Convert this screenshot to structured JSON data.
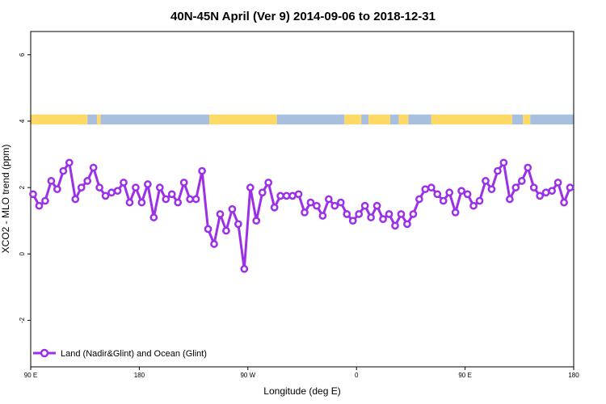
{
  "chart_data": {
    "type": "line",
    "title": "40N-45N April (Ver 9)   2014-09-06 to 2018-12-31",
    "xlabel": "Longitude (deg E)",
    "ylabel": "XCO2 - MLO trend (ppm)",
    "x_ticks": [
      {
        "pos": 90,
        "label": "90 E"
      },
      {
        "pos": 180,
        "label": "180"
      },
      {
        "pos": 270,
        "label": "90 W"
      },
      {
        "pos": 360,
        "label": "0"
      },
      {
        "pos": 450,
        "label": "90 E"
      },
      {
        "pos": 540,
        "label": "180"
      }
    ],
    "y_ticks": [
      -2,
      0,
      2,
      4,
      6
    ],
    "xlim": [
      90,
      540
    ],
    "ylim": [
      -3.4,
      6.7
    ],
    "grid": false,
    "legend_position": "bottom-left",
    "colors": {
      "series": "#9b30e8",
      "land": "#ffd966",
      "ocean": "#a9bfdf"
    },
    "land_ocean_strip": {
      "y_range": [
        3.9,
        4.2
      ],
      "segments": [
        {
          "x0": 90,
          "x1": 137,
          "type": "land"
        },
        {
          "x0": 137,
          "x1": 145,
          "type": "ocean"
        },
        {
          "x0": 145,
          "x1": 148,
          "type": "land"
        },
        {
          "x0": 148,
          "x1": 238,
          "type": "ocean"
        },
        {
          "x0": 238,
          "x1": 294,
          "type": "land"
        },
        {
          "x0": 294,
          "x1": 350,
          "type": "ocean"
        },
        {
          "x0": 350,
          "x1": 364,
          "type": "land"
        },
        {
          "x0": 364,
          "x1": 370,
          "type": "ocean"
        },
        {
          "x0": 370,
          "x1": 388,
          "type": "land"
        },
        {
          "x0": 388,
          "x1": 395,
          "type": "ocean"
        },
        {
          "x0": 395,
          "x1": 403,
          "type": "land"
        },
        {
          "x0": 403,
          "x1": 422,
          "type": "ocean"
        },
        {
          "x0": 422,
          "x1": 489,
          "type": "land"
        },
        {
          "x0": 489,
          "x1": 498,
          "type": "ocean"
        },
        {
          "x0": 498,
          "x1": 504,
          "type": "land"
        },
        {
          "x0": 504,
          "x1": 540,
          "type": "ocean"
        }
      ]
    },
    "series": [
      {
        "name": "Land (Nadir&Glint) and Ocean (Glint)",
        "x": [
          92,
          97,
          102,
          107,
          112,
          117,
          122,
          127,
          132,
          137,
          142,
          147,
          152,
          157,
          162,
          167,
          172,
          177,
          182,
          187,
          192,
          197,
          202,
          207,
          212,
          217,
          222,
          227,
          232,
          237,
          242,
          247,
          252,
          257,
          262,
          267,
          272,
          277,
          282,
          287,
          292,
          297,
          302,
          307,
          312,
          317,
          322,
          327,
          332,
          337,
          342,
          347,
          352,
          357,
          362,
          367,
          372,
          377,
          382,
          387,
          392,
          397,
          402,
          407,
          412,
          417,
          422,
          427,
          432,
          437,
          442,
          447,
          452,
          457,
          462,
          467,
          472,
          477,
          482,
          487,
          492,
          497,
          502,
          507,
          512,
          517,
          522,
          527,
          532,
          537
        ],
        "y": [
          1.8,
          1.45,
          1.6,
          2.2,
          1.95,
          2.5,
          2.75,
          1.65,
          2.0,
          2.2,
          2.6,
          2.0,
          1.75,
          1.85,
          1.9,
          2.15,
          1.55,
          2.0,
          1.55,
          2.1,
          1.1,
          2.0,
          1.65,
          1.8,
          1.55,
          2.15,
          1.65,
          1.65,
          2.5,
          0.75,
          0.3,
          1.2,
          0.7,
          1.35,
          0.9,
          -0.45,
          2.0,
          1.0,
          1.85,
          2.15,
          1.4,
          1.75,
          1.75,
          1.75,
          1.8,
          1.25,
          1.55,
          1.45,
          1.15,
          1.65,
          1.45,
          1.55,
          1.2,
          1.0,
          1.2,
          1.45,
          1.1,
          1.45,
          1.05,
          1.2,
          0.85,
          1.2,
          0.9,
          1.2,
          1.65,
          1.95,
          2.0,
          1.8,
          1.6,
          1.85,
          1.25,
          1.9,
          1.8,
          1.45,
          1.6,
          2.2,
          1.95,
          2.5,
          2.75,
          1.65,
          2.0,
          2.2,
          2.6,
          2.0,
          1.75,
          1.85,
          1.9,
          2.15,
          1.55,
          2.0
        ]
      }
    ]
  }
}
